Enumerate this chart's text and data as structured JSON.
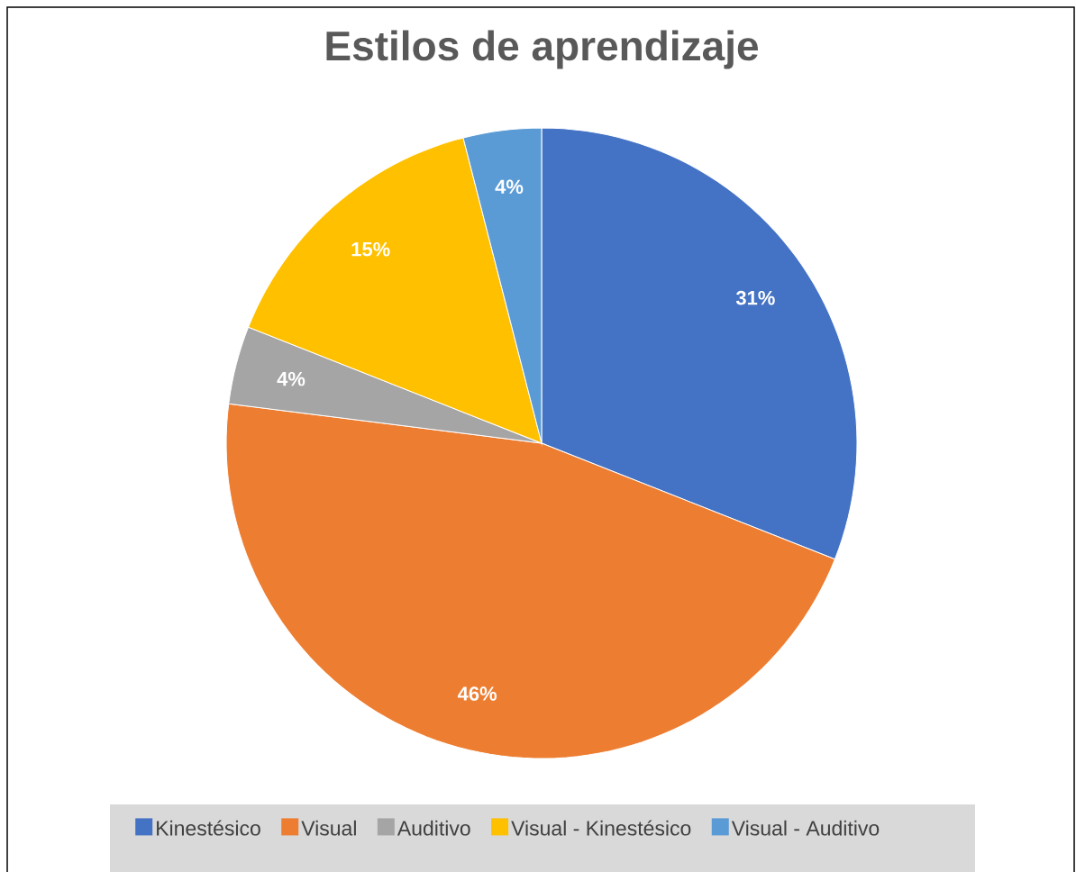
{
  "chart_data": {
    "type": "pie",
    "title": "Estilos de aprendizaje",
    "categories": [
      "Kinestésico",
      "Visual",
      "Auditivo",
      "Visual - Kinestésico",
      "Visual - Auditivo"
    ],
    "values": [
      31,
      46,
      4,
      15,
      4
    ],
    "colors": [
      "#4472c4",
      "#ed7d31",
      "#a5a5a5",
      "#ffc000",
      "#5b9bd5"
    ],
    "value_labels": [
      "31%",
      "46%",
      "4%",
      "15%",
      "4%"
    ],
    "legend": "bottom"
  }
}
